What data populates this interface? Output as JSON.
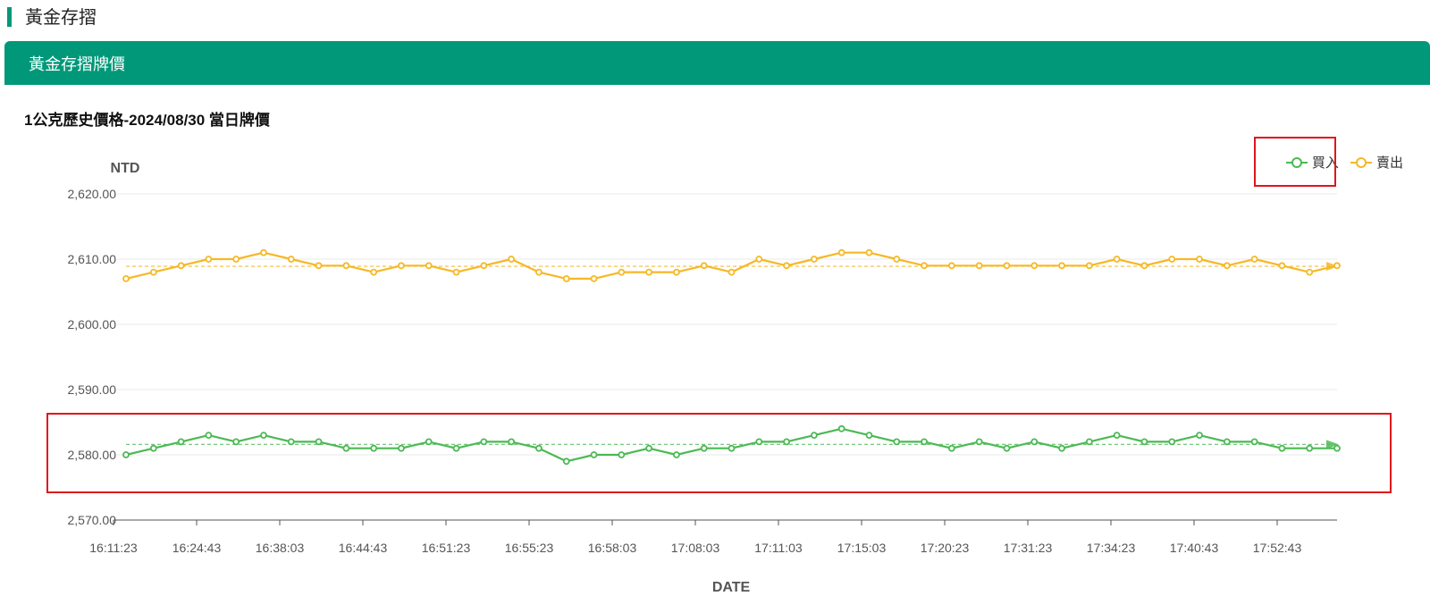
{
  "page": {
    "title": "黃金存摺"
  },
  "panel": {
    "header": "黃金存摺牌價"
  },
  "colors": {
    "brand": "#009879",
    "buy": "#4cb954",
    "sell": "#f6b826",
    "highlight": "#e0141b",
    "grid": "#e8e8e8"
  },
  "chart_data": {
    "type": "line",
    "title": "1公克歷史價格-2024/08/30 當日牌價",
    "ylabel": "NTD",
    "xlabel": "DATE",
    "ylim": [
      2570,
      2620
    ],
    "yticks": [
      "2,620.00",
      "2,610.00",
      "2,600.00",
      "2,590.00",
      "2,580.00",
      "2,570.00"
    ],
    "x_tick_labels": [
      "16:11:23",
      "16:24:43",
      "16:38:03",
      "16:44:43",
      "16:51:23",
      "16:55:23",
      "16:58:03",
      "17:08:03",
      "17:11:03",
      "17:15:03",
      "17:20:23",
      "17:31:23",
      "17:34:23",
      "17:40:43",
      "17:52:43"
    ],
    "legend_position": "top-right",
    "grid": true,
    "series": [
      {
        "name": "買入",
        "color": "#4cb954",
        "average": 2581.6,
        "values": [
          2580,
          2581,
          2582,
          2583,
          2582,
          2583,
          2582,
          2582,
          2581,
          2581,
          2581,
          2582,
          2581,
          2582,
          2582,
          2581,
          2579,
          2580,
          2580,
          2581,
          2580,
          2581,
          2581,
          2582,
          2582,
          2583,
          2584,
          2583,
          2582,
          2582,
          2581,
          2582,
          2581,
          2582,
          2581,
          2582,
          2583,
          2582,
          2582,
          2583,
          2582,
          2582,
          2581,
          2581,
          2581
        ]
      },
      {
        "name": "賣出",
        "color": "#f6b826",
        "average": 2608.9,
        "values": [
          2607,
          2608,
          2609,
          2610,
          2610,
          2611,
          2610,
          2609,
          2609,
          2608,
          2609,
          2609,
          2608,
          2609,
          2610,
          2608,
          2607,
          2607,
          2608,
          2608,
          2608,
          2609,
          2608,
          2610,
          2609,
          2610,
          2611,
          2611,
          2610,
          2609,
          2609,
          2609,
          2609,
          2609,
          2609,
          2609,
          2610,
          2609,
          2610,
          2610,
          2609,
          2610,
          2609,
          2608,
          2609
        ]
      }
    ]
  }
}
